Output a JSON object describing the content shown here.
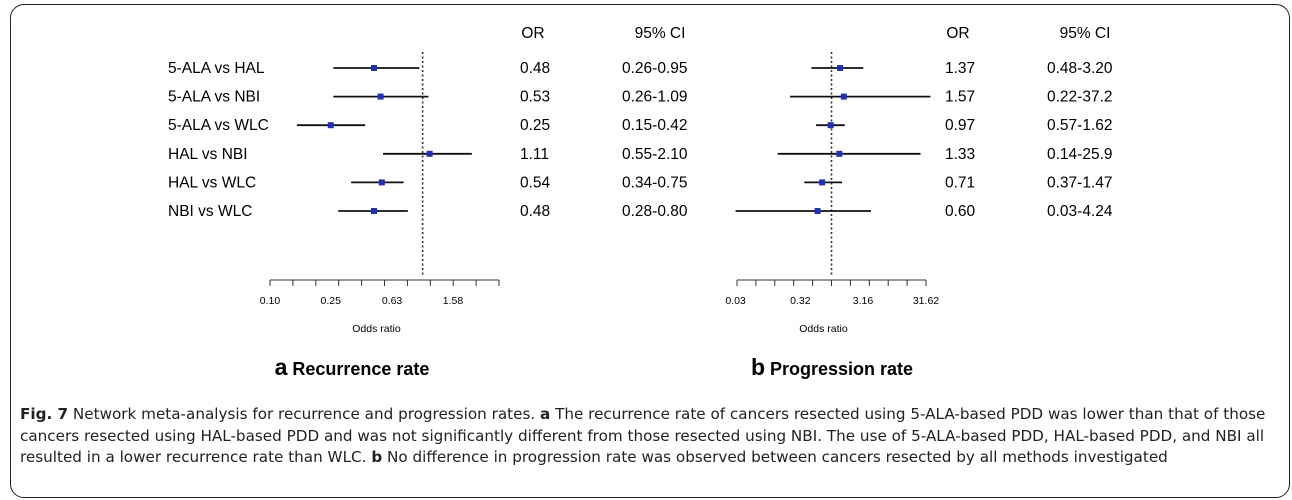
{
  "panels": [
    {
      "id": "a",
      "letter": "a",
      "title": "Recurrence rate",
      "or_header": "OR",
      "ci_header": "95% CI",
      "xlabel": "Odds ratio",
      "ticks": [
        "0.10",
        "0.25",
        "0.63",
        "1.58"
      ],
      "ref_line": 1,
      "rows": [
        {
          "label": "5-ALA vs HAL",
          "or": 0.48,
          "lo": 0.26,
          "hi": 0.95,
          "or_text": "0.48",
          "ci_text": "0.26-0.95"
        },
        {
          "label": "5-ALA vs NBI",
          "or": 0.53,
          "lo": 0.26,
          "hi": 1.09,
          "or_text": "0.53",
          "ci_text": "0.26-1.09"
        },
        {
          "label": "5-ALA vs WLC",
          "or": 0.25,
          "lo": 0.15,
          "hi": 0.42,
          "or_text": "0.25",
          "ci_text": "0.15-0.42"
        },
        {
          "label": "HAL vs NBI",
          "or": 1.11,
          "lo": 0.55,
          "hi": 2.1,
          "or_text": "1.11",
          "ci_text": "0.55-2.10"
        },
        {
          "label": "HAL vs WLC",
          "or": 0.54,
          "lo": 0.34,
          "hi": 0.75,
          "or_text": "0.54",
          "ci_text": "0.34-0.75"
        },
        {
          "label": "NBI vs WLC",
          "or": 0.48,
          "lo": 0.28,
          "hi": 0.8,
          "or_text": "0.48",
          "ci_text": "0.28-0.80"
        }
      ]
    },
    {
      "id": "b",
      "letter": "b",
      "title": "Progression rate",
      "or_header": "OR",
      "ci_header": "95% CI",
      "xlabel": "Odds ratio",
      "ticks": [
        "0.03",
        "0.32",
        "3.16",
        "31.62"
      ],
      "ref_line": 1,
      "rows": [
        {
          "or": 1.37,
          "lo": 0.48,
          "hi": 3.2,
          "or_text": "1.37",
          "ci_text": "0.48-3.20"
        },
        {
          "or": 1.57,
          "lo": 0.22,
          "hi": 37.2,
          "or_text": "1.57",
          "ci_text": "0.22-37.2"
        },
        {
          "or": 0.97,
          "lo": 0.57,
          "hi": 1.62,
          "or_text": "0.97",
          "ci_text": "0.57-1.62"
        },
        {
          "or": 1.33,
          "lo": 0.14,
          "hi": 25.9,
          "or_text": "1.33",
          "ci_text": "0.14-25.9"
        },
        {
          "or": 0.71,
          "lo": 0.37,
          "hi": 1.47,
          "or_text": "0.71",
          "ci_text": "0.37-1.47"
        },
        {
          "or": 0.6,
          "lo": 0.03,
          "hi": 4.24,
          "or_text": "0.60",
          "ci_text": "0.03-4.24"
        }
      ]
    }
  ],
  "colors": {
    "point": "#1f2fbf",
    "line": "#111111",
    "ref": "#333333"
  },
  "caption": {
    "fig_label": "Fig. 7",
    "s1": " Network meta-analysis for recurrence and progression rates. ",
    "a_label": "a",
    "s2": " The recurrence rate of cancers resected using 5-ALA-based PDD was lower than that of those cancers resected using HAL-based PDD and was not significantly different from those resected using NBI. The use of 5-ALA-based PDD, HAL-based PDD, and NBI all resulted in a lower recurrence rate than WLC. ",
    "b_label": "b",
    "s3": " No difference in progression rate was observed between cancers resected by all methods investigated"
  },
  "chart_data": [
    {
      "type": "forest",
      "title": "Recurrence rate",
      "xlabel": "Odds ratio",
      "x_scale": "log",
      "x_ticks": [
        0.1,
        0.25,
        0.63,
        1.58
      ],
      "reference": 1,
      "categories": [
        "5-ALA vs HAL",
        "5-ALA vs NBI",
        "5-ALA vs WLC",
        "HAL vs NBI",
        "HAL vs WLC",
        "NBI vs WLC"
      ],
      "or": [
        0.48,
        0.53,
        0.25,
        1.11,
        0.54,
        0.48
      ],
      "ci_low": [
        0.26,
        0.26,
        0.15,
        0.55,
        0.34,
        0.28
      ],
      "ci_high": [
        0.95,
        1.09,
        0.42,
        2.1,
        0.75,
        0.8
      ]
    },
    {
      "type": "forest",
      "title": "Progression rate",
      "xlabel": "Odds ratio",
      "x_scale": "log",
      "x_ticks": [
        0.03,
        0.32,
        3.16,
        31.62
      ],
      "reference": 1,
      "categories": [
        "5-ALA vs HAL",
        "5-ALA vs NBI",
        "5-ALA vs WLC",
        "HAL vs NBI",
        "HAL vs WLC",
        "NBI vs WLC"
      ],
      "or": [
        1.37,
        1.57,
        0.97,
        1.33,
        0.71,
        0.6
      ],
      "ci_low": [
        0.48,
        0.22,
        0.57,
        0.14,
        0.37,
        0.03
      ],
      "ci_high": [
        3.2,
        37.2,
        1.62,
        25.9,
        1.47,
        4.24
      ]
    }
  ]
}
